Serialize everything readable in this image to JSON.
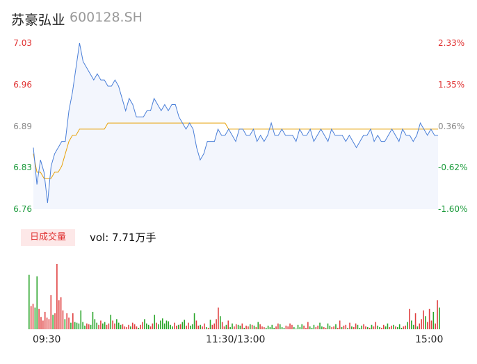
{
  "header": {
    "name": "苏豪弘业",
    "code": "600128.SH"
  },
  "volume_panel": {
    "badge": "日成交量",
    "summary": "vol: 7.71万手"
  },
  "colors": {
    "price_line": "#4a7fd8",
    "avg_line": "#e8a20a",
    "up": "#e04040",
    "down": "#2aa52a",
    "area_fill": "#f3f6fd"
  },
  "chart_data": [
    {
      "type": "line",
      "title": "",
      "x_ticks": [
        "09:30",
        "11:30/13:00",
        "15:00"
      ],
      "y_ticks_left": [
        "7.03",
        "6.96",
        "6.89",
        "6.83",
        "6.76"
      ],
      "y_ticks_right": [
        "2.33%",
        "1.35%",
        "0.36%",
        "-0.62%",
        "-1.60%"
      ],
      "ylim": [
        6.76,
        7.03
      ],
      "prev_close": 6.86,
      "series": [
        {
          "values": [
            6.86,
            6.8,
            6.84,
            6.82,
            6.77,
            6.83,
            6.85,
            6.86,
            6.87,
            6.87,
            6.92,
            6.95,
            6.99,
            7.03,
            7.0,
            6.99,
            6.98,
            6.97,
            6.98,
            6.97,
            6.97,
            6.96,
            6.96,
            6.97,
            6.96,
            6.94,
            6.92,
            6.94,
            6.93,
            6.91,
            6.91,
            6.91,
            6.92,
            6.92,
            6.94,
            6.93,
            6.92,
            6.93,
            6.92,
            6.93,
            6.93,
            6.91,
            6.9,
            6.89,
            6.9,
            6.89,
            6.86,
            6.84,
            6.85,
            6.87,
            6.87,
            6.87,
            6.89,
            6.88,
            6.88,
            6.89,
            6.88,
            6.87,
            6.89,
            6.89,
            6.88,
            6.88,
            6.89,
            6.87,
            6.88,
            6.87,
            6.88,
            6.9,
            6.88,
            6.88,
            6.89,
            6.88,
            6.88,
            6.88,
            6.87,
            6.89,
            6.88,
            6.88,
            6.89,
            6.87,
            6.88,
            6.89,
            6.88,
            6.87,
            6.89,
            6.88,
            6.88,
            6.88,
            6.87,
            6.88,
            6.87,
            6.86,
            6.87,
            6.88,
            6.88,
            6.89,
            6.87,
            6.88,
            6.87,
            6.87,
            6.88,
            6.89,
            6.88,
            6.87,
            6.89,
            6.88,
            6.88,
            6.87,
            6.88,
            6.9,
            6.89,
            6.88,
            6.89,
            6.88,
            6.88
          ],
          "color": "#4a7fd8"
        },
        {
          "values": [
            6.85,
            6.82,
            6.82,
            6.81,
            6.81,
            6.81,
            6.82,
            6.82,
            6.83,
            6.85,
            6.87,
            6.88,
            6.88,
            6.89,
            6.89,
            6.89,
            6.89,
            6.89,
            6.89,
            6.89,
            6.89,
            6.9,
            6.9,
            6.9,
            6.9,
            6.9,
            6.9,
            6.9,
            6.9,
            6.9,
            6.9,
            6.9,
            6.9,
            6.9,
            6.9,
            6.9,
            6.9,
            6.9,
            6.9,
            6.9,
            6.9,
            6.9,
            6.9,
            6.9,
            6.9,
            6.9,
            6.9,
            6.9,
            6.9,
            6.9,
            6.9,
            6.9,
            6.9,
            6.9,
            6.9,
            6.89,
            6.89,
            6.89,
            6.89,
            6.89,
            6.89,
            6.89,
            6.89,
            6.89,
            6.89,
            6.89,
            6.89,
            6.89,
            6.89,
            6.89,
            6.89,
            6.89,
            6.89,
            6.89,
            6.89,
            6.89,
            6.89,
            6.89,
            6.89,
            6.89,
            6.89,
            6.89,
            6.89,
            6.89,
            6.89,
            6.89,
            6.89,
            6.89,
            6.89,
            6.89,
            6.89,
            6.89,
            6.89,
            6.89,
            6.89,
            6.89,
            6.89,
            6.89,
            6.89,
            6.89,
            6.89,
            6.89,
            6.89,
            6.89,
            6.89,
            6.89,
            6.89,
            6.89,
            6.89,
            6.89,
            6.89,
            6.89,
            6.89,
            6.89,
            6.89
          ],
          "color": "#e8a20a"
        }
      ]
    },
    {
      "type": "bar",
      "title": "",
      "values": [
        75,
        32,
        35,
        30,
        73,
        28,
        17,
        12,
        24,
        16,
        14,
        47,
        20,
        22,
        90,
        40,
        44,
        26,
        14,
        22,
        16,
        9,
        22,
        10,
        9,
        8,
        26,
        10,
        5,
        8,
        7,
        6,
        24,
        14,
        9,
        6,
        12,
        8,
        10,
        6,
        8,
        20,
        12,
        8,
        14,
        9,
        6,
        7,
        4,
        3,
        6,
        4,
        9,
        7,
        4,
        2,
        6,
        10,
        14,
        8,
        6,
        4,
        8,
        20,
        9,
        7,
        12,
        15,
        8,
        12,
        11,
        6,
        4,
        9,
        5,
        6,
        7,
        10,
        13,
        5,
        9,
        5,
        7,
        22,
        12,
        5,
        6,
        4,
        8,
        3,
        2,
        13,
        6,
        8,
        14,
        30,
        18,
        10,
        4,
        6,
        12,
        3,
        8,
        4,
        7,
        6,
        5,
        8,
        2,
        5,
        4,
        7,
        6,
        5,
        3,
        10,
        7,
        4,
        3,
        2,
        5,
        3,
        6,
        2,
        4,
        8,
        7,
        3,
        2,
        5,
        4,
        8,
        6,
        3,
        1,
        6,
        3,
        7,
        5,
        2,
        10,
        4,
        2,
        6,
        3,
        5,
        9,
        4,
        3,
        2,
        8,
        5,
        3,
        4,
        7,
        2,
        12,
        3,
        5,
        6,
        2,
        9,
        4,
        3,
        8,
        6,
        2,
        5,
        7,
        4,
        3,
        2,
        6,
        4,
        10,
        5,
        3,
        2,
        6,
        4,
        8,
        3,
        5,
        6,
        4,
        3,
        7,
        2,
        4,
        5,
        10,
        28,
        12,
        6,
        22,
        4,
        8,
        14,
        26,
        18,
        10,
        28,
        12,
        24,
        8,
        40,
        30
      ],
      "up": [
        false,
        true,
        true,
        false,
        false,
        true,
        true,
        true,
        true,
        true,
        true,
        true,
        false,
        true,
        true,
        true,
        true,
        true,
        false,
        true,
        true,
        false,
        true,
        false,
        false,
        false,
        false,
        false,
        false,
        true,
        true,
        false,
        false,
        false,
        false,
        true,
        true,
        false,
        false,
        true,
        true,
        false,
        true,
        true,
        false,
        false,
        false,
        true,
        true,
        true,
        true,
        false,
        true,
        true,
        true,
        false,
        true,
        true,
        false,
        false,
        false,
        true,
        true,
        false,
        true,
        false,
        false,
        false,
        false,
        false,
        false,
        false,
        false,
        true,
        true,
        false,
        true,
        false,
        false,
        true,
        true,
        false,
        false,
        false,
        true,
        true,
        false,
        true,
        true,
        false,
        true,
        false,
        true,
        true,
        true,
        true,
        false,
        true,
        true,
        false,
        true,
        false,
        false,
        true,
        true,
        false,
        false,
        true,
        false,
        true,
        true,
        false,
        true,
        false,
        true,
        false,
        true,
        true,
        true,
        false,
        false,
        false,
        false,
        false,
        true,
        true,
        false,
        false,
        false,
        true,
        true,
        true,
        true,
        false,
        false,
        false,
        false,
        false,
        true,
        true,
        true,
        false,
        false,
        false,
        true,
        true,
        false,
        false,
        true,
        true,
        false,
        false,
        true,
        true,
        false,
        true,
        true,
        false,
        true,
        true,
        false,
        true,
        false,
        true,
        true,
        false,
        false,
        false,
        true,
        true,
        false,
        true,
        false,
        true,
        true,
        false,
        false,
        true,
        true,
        false,
        false,
        true,
        true,
        false,
        true,
        false,
        false,
        false,
        true,
        true,
        false,
        true,
        false,
        false,
        true,
        false,
        true,
        true,
        true,
        false,
        true,
        true,
        true,
        false,
        true,
        true
      ]
    }
  ]
}
